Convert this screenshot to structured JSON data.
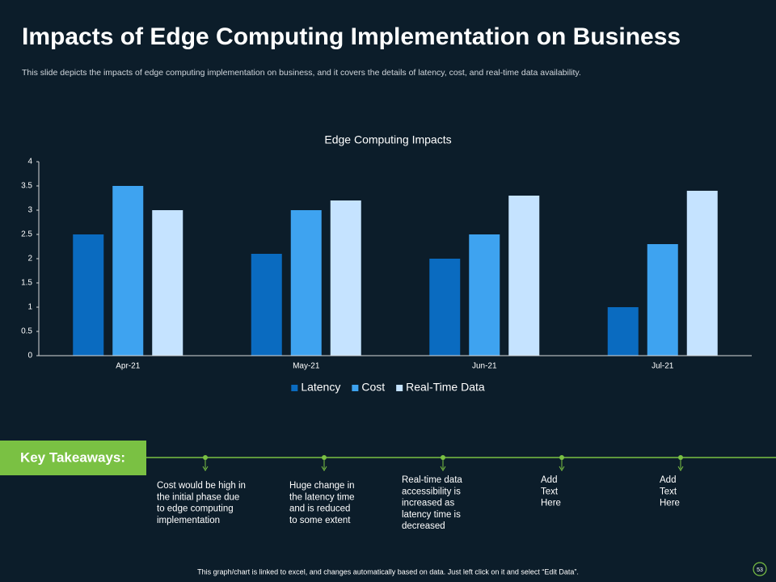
{
  "header": {
    "title": "Impacts of Edge Computing Implementation on Business",
    "subtitle": "This slide depicts the impacts of edge computing implementation on business, and it covers the details of latency, cost, and real-time data availability."
  },
  "chart_data": {
    "type": "bar",
    "title": "Edge Computing Impacts",
    "categories": [
      "Apr-21",
      "May-21",
      "Jun-21",
      "Jul-21"
    ],
    "series": [
      {
        "name": "Latency",
        "color": "#0a6bc0",
        "values": [
          2.5,
          2.1,
          2,
          1
        ]
      },
      {
        "name": "Cost",
        "color": "#3ea3f0",
        "values": [
          3.5,
          3,
          2.5,
          2.3
        ]
      },
      {
        "name": "Real-Time Data",
        "color": "#c5e3ff",
        "values": [
          3,
          3.2,
          3.3,
          3.4
        ]
      }
    ],
    "ylim": [
      0,
      4
    ],
    "yticks": [
      0,
      0.5,
      1,
      1.5,
      2,
      2.5,
      3,
      3.5,
      4
    ],
    "grid": false,
    "legend": "bottom"
  },
  "takeaways": {
    "label": "Key Takeaways:",
    "items": [
      {
        "lines": [
          "Cost would be high in",
          "the initial phase due",
          "to edge computing",
          "implementation"
        ]
      },
      {
        "lines": [
          "Huge change in",
          "the latency time",
          "and is reduced",
          "to some extent"
        ]
      },
      {
        "lines": [
          "Real-time data",
          "accessibility is",
          "increased as",
          "latency time is",
          "decreased"
        ]
      },
      {
        "lines": [
          "Add",
          "Text",
          "Here"
        ]
      },
      {
        "lines": [
          "Add",
          "Text",
          "Here"
        ]
      }
    ]
  },
  "footer": {
    "note": "This graph/chart is linked to excel, and changes automatically based on data. Just left click on it and select “Edit Data”.",
    "page": "53"
  }
}
